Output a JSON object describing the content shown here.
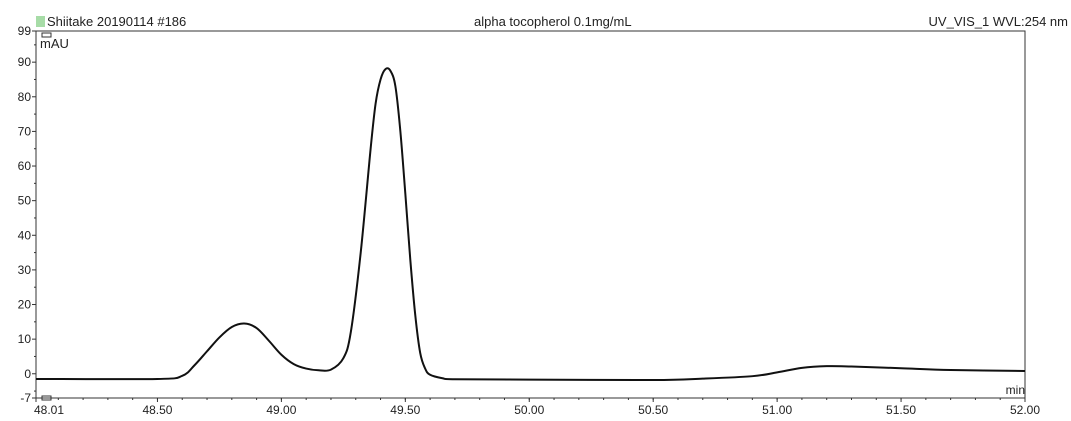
{
  "header": {
    "sample": "Shiitake 20190114 #186",
    "injection": "alpha tocopherol 0.1mg/mL",
    "detector": "UV_VIS_1 WVL:254 nm"
  },
  "colors": {
    "trace": "#111111",
    "frame": "#333333",
    "swatch": "#a7dca7"
  },
  "chart_data": {
    "type": "line",
    "title": "alpha tocopherol 0.1mg/mL",
    "xlabel": "min",
    "ylabel": "mAU",
    "xlim": [
      48.01,
      52.0
    ],
    "ylim": [
      -7,
      99
    ],
    "x_ticks": [
      48.01,
      48.5,
      49.0,
      49.5,
      50.0,
      50.5,
      51.0,
      51.5,
      52.0
    ],
    "x_tick_labels": [
      "48.01",
      "48.50",
      "49.00",
      "49.50",
      "50.00",
      "50.50",
      "51.00",
      "51.50",
      "52.00"
    ],
    "y_ticks": [
      -7,
      0,
      10,
      20,
      30,
      40,
      50,
      60,
      70,
      80,
      90,
      99
    ],
    "y_tick_labels": [
      "-7",
      "0",
      "10",
      "20",
      "30",
      "40",
      "50",
      "60",
      "70",
      "80",
      "90",
      "99"
    ],
    "grid": false,
    "legend": "none",
    "series": [
      {
        "x": [
          48.01,
          48.5,
          48.6,
          48.65,
          48.7,
          48.75,
          48.8,
          48.85,
          48.9,
          48.95,
          49.0,
          49.05,
          49.1,
          49.15,
          49.2,
          49.25,
          49.28,
          49.32,
          49.36,
          49.38,
          49.4,
          49.42,
          49.44,
          49.46,
          49.48,
          49.5,
          49.52,
          49.54,
          49.56,
          49.58,
          49.6,
          49.65,
          49.7,
          50.0,
          50.5,
          50.7,
          50.9,
          51.0,
          51.1,
          51.2,
          51.3,
          51.5,
          51.7,
          52.0
        ],
        "y": [
          -1.5,
          -1.5,
          -0.6,
          2.5,
          6.5,
          10.5,
          13.5,
          14.5,
          13.2,
          9.5,
          5.5,
          2.8,
          1.5,
          1.0,
          1.2,
          4.5,
          12,
          35,
          65,
          78,
          85,
          88,
          87.5,
          83,
          70,
          52,
          33,
          17,
          6,
          1.5,
          -0.3,
          -1.3,
          -1.6,
          -1.7,
          -1.8,
          -1.4,
          -0.7,
          0.4,
          1.7,
          2.2,
          2.1,
          1.6,
          1.1,
          0.8
        ]
      }
    ]
  }
}
